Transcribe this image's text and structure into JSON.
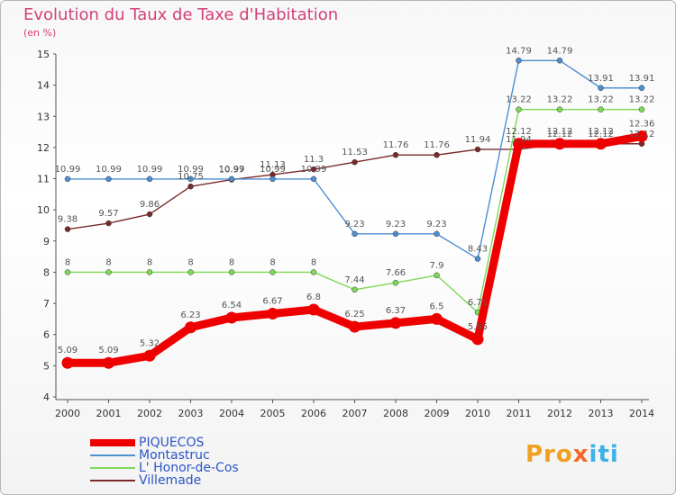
{
  "chart_data": {
    "type": "line",
    "title": "Evolution du Taux de Taxe d'Habitation",
    "subtitle": "(en %)",
    "x": [
      "2000",
      "2001",
      "2002",
      "2003",
      "2004",
      "2005",
      "2006",
      "2007",
      "2008",
      "2009",
      "2010",
      "2011",
      "2012",
      "2013",
      "2014"
    ],
    "ylim": [
      4,
      15
    ],
    "yticks": [
      "4",
      "5",
      "6",
      "7",
      "8",
      "9",
      "10",
      "11",
      "12",
      "13",
      "14",
      "15"
    ],
    "grid": false,
    "legend_position": "bottom-left",
    "series": [
      {
        "name": "Villemade",
        "color": "#7a2a2a",
        "values": [
          9.38,
          9.57,
          9.86,
          10.75,
          10.97,
          11.13,
          11.3,
          11.53,
          11.76,
          11.76,
          11.94,
          11.94,
          12.12,
          12.12,
          12.12
        ]
      },
      {
        "name": "Montastruc",
        "color": "#4f8fcf",
        "values": [
          10.99,
          10.99,
          10.99,
          10.99,
          10.99,
          10.99,
          10.99,
          9.23,
          9.23,
          9.23,
          8.43,
          14.79,
          14.79,
          13.91,
          13.91
        ]
      },
      {
        "name": "L' Honor-de-Cos",
        "color": "#7ed957",
        "values": [
          8,
          8,
          8,
          8,
          8,
          8,
          8,
          7.44,
          7.66,
          7.9,
          6.71,
          13.22,
          13.22,
          13.22,
          13.22
        ]
      },
      {
        "name": "PIQUECOS",
        "color": "#ee0000",
        "values": [
          5.09,
          5.09,
          5.32,
          6.23,
          6.54,
          6.67,
          6.8,
          6.25,
          6.37,
          6.5,
          5.85,
          12.12,
          12.12,
          12.12,
          12.36
        ]
      }
    ]
  },
  "legend": {
    "items": [
      "PIQUECOS",
      "Montastruc",
      "L' Honor-de-Cos",
      "Villemade"
    ]
  },
  "logo": {
    "p1": "Pro",
    "p2": "x",
    "p3": "iti"
  }
}
